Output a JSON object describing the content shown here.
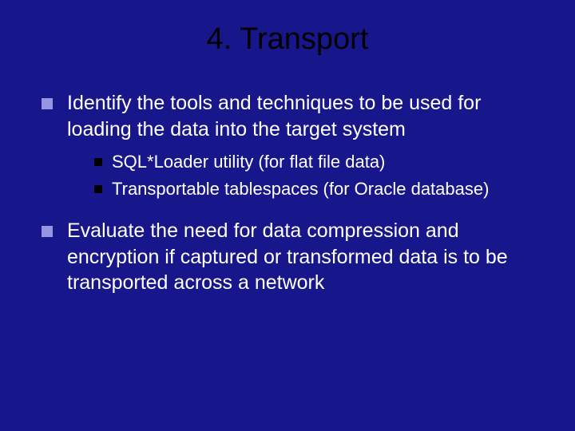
{
  "slide": {
    "title": "4. Transport",
    "background_color": "#17178b",
    "title_color": "#000000",
    "title_fontsize": 38,
    "body_text_color": "#ffffff",
    "main_bullet_color": "#9595e3",
    "sub_bullet_color": "#000000",
    "main_fontsize": 25,
    "sub_fontsize": 22,
    "bullets": [
      {
        "text": "Identify the tools and techniques to be used for loading the data into the target system",
        "sub": [
          "SQL*Loader utility (for flat file data)",
          "Transportable tablespaces (for Oracle database)"
        ]
      },
      {
        "text": "Evaluate the need for data compression and encryption if captured or transformed data is to be transported across a network",
        "sub": []
      }
    ]
  }
}
